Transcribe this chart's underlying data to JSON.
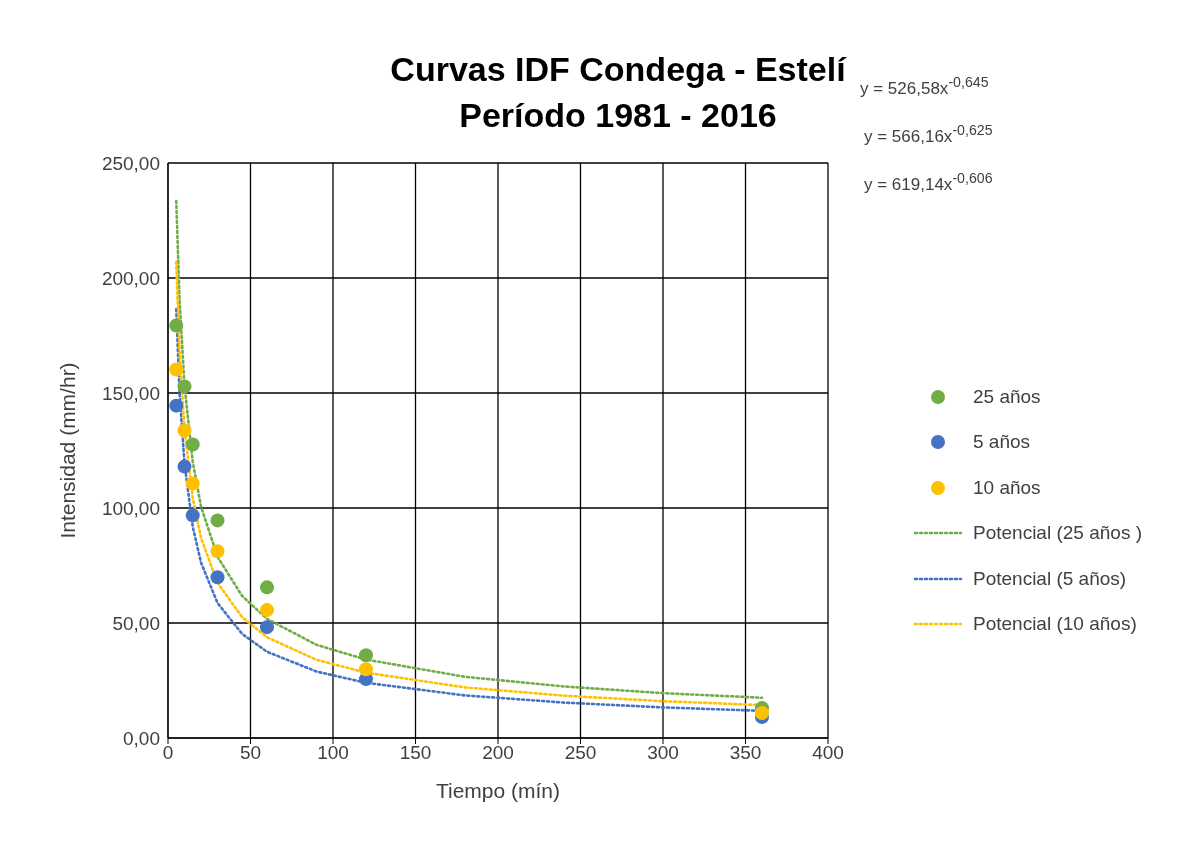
{
  "chart_data": {
    "type": "scatter",
    "title": "Curvas IDF Condega - Estelí\nPeríodo 1981 - 2016",
    "xlabel": "Tiempo (mín)",
    "ylabel": "Intensidad (mm/hr)",
    "xlim": [
      0,
      400
    ],
    "xticks": [
      0,
      50,
      100,
      150,
      200,
      250,
      300,
      350,
      400
    ],
    "ylim": [
      0,
      250
    ],
    "yticks": [
      {
        "value": 0,
        "label": "0,00"
      },
      {
        "value": 50,
        "label": "50,00"
      },
      {
        "value": 100,
        "label": "100,00"
      },
      {
        "value": 150,
        "label": "150,00"
      },
      {
        "value": 200,
        "label": "200,00"
      },
      {
        "value": 250,
        "label": "250,00"
      }
    ],
    "grid": true,
    "legend": "right",
    "marker": "circle",
    "annotations": [
      "y = 526,58x$^{-0,645}$",
      "y = 566,16x$^{-0,625}$",
      "y = 619,14x$^{-0,606}$"
    ],
    "series": [
      {
        "name": "25 años",
        "color": "#70ad47",
        "x": [
          5,
          10,
          15,
          30,
          60,
          120,
          360
        ],
        "values": [
          179.3,
          152.8,
          127.6,
          94.6,
          65.5,
          36.0,
          13.0
        ]
      },
      {
        "name": "5 años",
        "color": "#4472c4",
        "x": [
          5,
          10,
          15,
          30,
          60,
          120,
          360
        ],
        "values": [
          144.5,
          118.0,
          96.8,
          69.9,
          48.2,
          25.6,
          9.1
        ]
      },
      {
        "name": "10 años",
        "color": "#ffc000",
        "x": [
          5,
          10,
          15,
          30,
          60,
          120,
          360
        ],
        "values": [
          160.2,
          133.7,
          110.7,
          81.2,
          55.6,
          29.9,
          10.9
        ]
      },
      {
        "name": "Potencial (25 años )",
        "type": "line",
        "line_style": "dotted",
        "marker": "none",
        "color": "#70ad47",
        "x": [
          5,
          7,
          10,
          15,
          20,
          30,
          45,
          60,
          90,
          120,
          180,
          240,
          300,
          360
        ],
        "values": [
          233.5,
          190.5,
          153.3,
          120.0,
          100.7,
          78.8,
          61.7,
          51.8,
          40.5,
          34.1,
          26.6,
          22.4,
          19.5,
          17.5
        ]
      },
      {
        "name": "Potencial (5 años)",
        "type": "line",
        "line_style": "dotted",
        "marker": "none",
        "color": "#4472c4",
        "x": [
          5,
          7,
          10,
          15,
          20,
          30,
          45,
          60,
          90,
          120,
          180,
          240,
          300,
          360
        ],
        "values": [
          186.4,
          150.1,
          119.3,
          91.8,
          76.3,
          58.7,
          45.2,
          37.5,
          28.9,
          24.0,
          18.5,
          15.4,
          13.3,
          11.8
        ]
      },
      {
        "name": "Potencial (10 años)",
        "type": "line",
        "line_style": "dotted",
        "marker": "none",
        "color": "#ffc000",
        "x": [
          5,
          7,
          10,
          15,
          20,
          30,
          45,
          60,
          90,
          120,
          180,
          240,
          300,
          360
        ],
        "values": [
          207.0,
          167.8,
          134.3,
          104.2,
          87.0,
          67.5,
          52.5,
          43.8,
          34.0,
          28.4,
          22.0,
          18.4,
          16.0,
          14.3
        ]
      }
    ]
  }
}
